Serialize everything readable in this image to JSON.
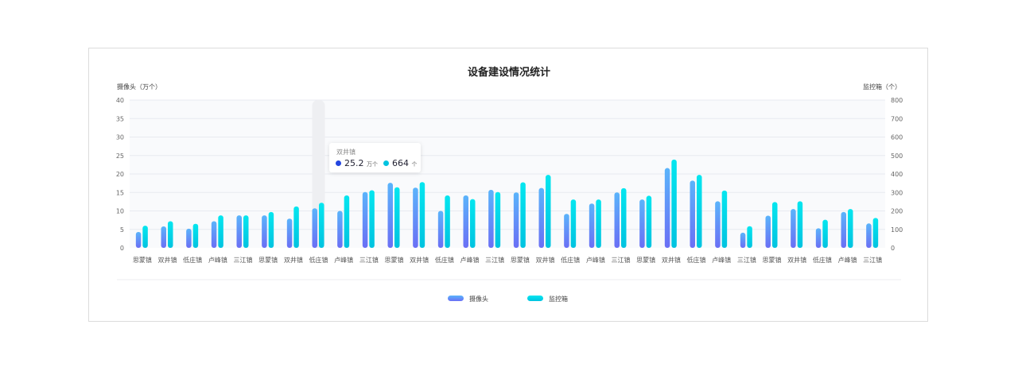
{
  "chart_data": {
    "type": "bar",
    "title": "设备建设情况统计",
    "ylabel_left": "摄像头（万个）",
    "ylabel_right": "监控箱（个）",
    "ylim_left": [
      0,
      40
    ],
    "yticks_left": [
      0,
      5,
      10,
      15,
      20,
      25,
      30,
      35,
      40
    ],
    "ylim_right": [
      0,
      800
    ],
    "yticks_right": [
      0,
      100,
      200,
      300,
      400,
      500,
      600,
      700,
      800
    ],
    "grid": true,
    "legend": "bottom",
    "categories": [
      "思蒙镇",
      "双井镇",
      "低庄镇",
      "卢峰镇",
      "三江镇",
      "思蒙镇",
      "双井镇",
      "低庄镇",
      "卢峰镇",
      "三江镇",
      "思蒙镇",
      "双井镇",
      "低庄镇",
      "卢峰镇",
      "三江镇",
      "思蒙镇",
      "双井镇",
      "低庄镇",
      "卢峰镇",
      "三江镇",
      "思蒙镇",
      "双井镇",
      "低庄镇",
      "卢峰镇",
      "三江镇",
      "思蒙镇",
      "双井镇",
      "低庄镇",
      "卢峰镇",
      "三江镇"
    ],
    "series": [
      {
        "name": "摄像头",
        "axis": "left",
        "color": "#5b7cf7",
        "values": [
          4.3,
          5.8,
          5.2,
          7.2,
          8.8,
          8.8,
          7.9,
          10.7,
          10,
          15.1,
          17.6,
          16.3,
          10,
          14.2,
          15.7,
          15,
          16.2,
          9.2,
          12,
          15,
          13.1,
          21.6,
          18.2,
          12.6,
          4.1,
          8.7,
          10.5,
          5.3,
          9.7,
          6.6
        ]
      },
      {
        "name": "监控箱",
        "axis": "right",
        "color": "#00d5e8",
        "values": [
          120,
          144,
          130,
          176,
          176,
          194,
          224,
          244,
          284,
          312,
          328,
          356,
          284,
          264,
          302,
          355,
          395,
          262,
          262,
          323,
          282,
          478,
          395,
          310,
          117,
          248,
          252,
          152,
          210,
          162
        ]
      }
    ],
    "highlight_index": 7,
    "tooltip": {
      "title": "双井镇",
      "camera_value": "25.2",
      "camera_unit": "万个",
      "box_value": "664",
      "box_unit": "个",
      "camera_color": "#2446e0",
      "box_color": "#00c3e0"
    }
  }
}
